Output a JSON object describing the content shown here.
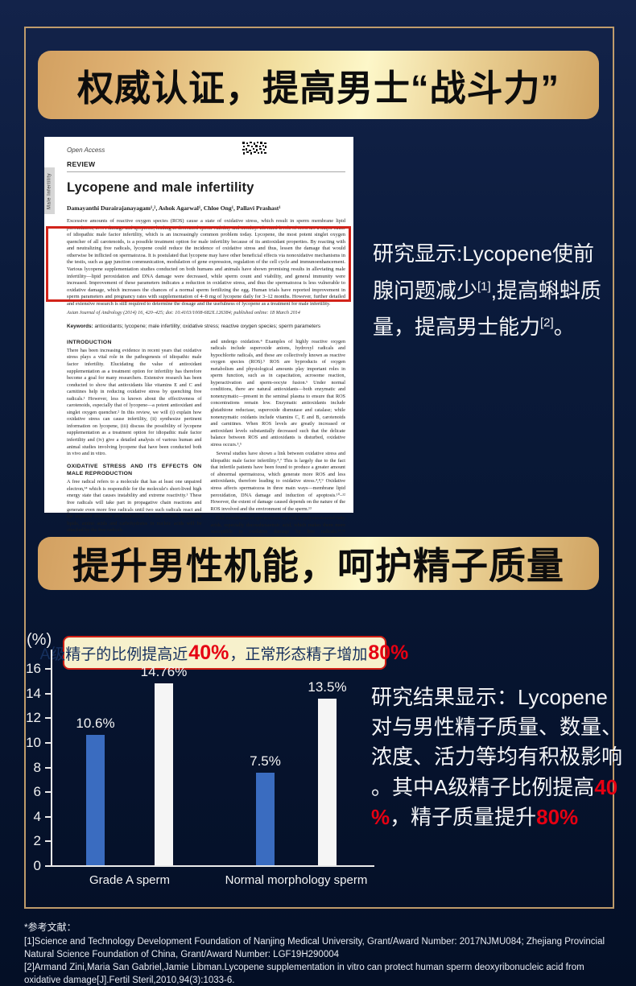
{
  "banners": {
    "banner1": "权威认证，提高男士“战斗力”",
    "banner2": "提升男性机能，呵护精子质量"
  },
  "paper": {
    "open_access": "Open Access",
    "review": "REVIEW",
    "side_tab": "Male Infertility",
    "title": "Lycopene and male infertility",
    "authors": "Damayanthi Durairajanayagam¹,², Ashok Agarwal¹, Chloe Ong¹, Pallavi Prashast¹",
    "abstract": "Excessive amounts of reactive oxygen species (ROS) cause a state of oxidative stress, which result in sperm membrane lipid peroxidation, DNA damage and apoptosis, leading to decreased sperm viability and motility. Elevated levels of ROS are a major cause of idiopathic male factor infertility, which is an increasingly common problem today. Lycopene, the most potent singlet oxygen quencher of all carotenoids, is a possible treatment option for male infertility because of its antioxidant properties. By reacting with and neutralizing free radicals, lycopene could reduce the incidence of oxidative stress and thus, lessen the damage that would otherwise be inflicted on spermatozoa. It is postulated that lycopene may have other beneficial effects via nonoxidative mechanisms in the testis, such as gap junction communication, modulation of gene expression, regulation of the cell cycle and immunoenhancement. Various lycopene supplementation studies conducted on both humans and animals have shown promising results in alleviating male infertility—lipid peroxidation and DNA damage were decreased, while sperm count and viability, and general immunity were increased. Improvement of these parameters indicates a reduction in oxidative stress, and thus the spermatozoa is less vulnerable to oxidative damage, which increases the chances of a normal sperm fertilizing the egg. Human trials have reported improvement in sperm parameters and pregnancy rates with supplementation of 4–8 mg of lycopene daily for 3–12 months. However, further detailed and extensive research is still required to determine the dosage and the usefulness of lycopene as a treatment for male infertility.",
    "journal_line": "Asian Journal of Andrology (2014) 16, 420–425; doi: 10.4103/1008-682X.126384; published online: 18 March 2014",
    "keywords_label": "Keywords:",
    "keywords_text": " antioxidants; lycopene; male infertility; oxidative stress; reactive oxygen species; sperm parameters",
    "col_left": {
      "h1": "INTRODUCTION",
      "p1": "There has been increasing evidence in recent years that oxidative stress plays a vital role in the pathogenesis of idiopathic male factor infertility. Elucidating the value of antioxidant supplementation as a treatment option for infertility has therefore become a goal for many researchers. Extensive research has been conducted to show that antioxidants like vitamins E and C and carnitines help in reducing oxidative stress by quenching free radicals.¹ However, less is known about the effectiveness of carotenoids, especially that of lycopene—a potent antioxidant and singlet oxygen quencher.² In this review, we will (i) explain how oxidative stress can cause infertility, (ii) synthesize pertinent information on lycopene, (iii) discuss the possibility of lycopene supplementation as a treatment option for idiopathic male factor infertility and (iv) give a detailed analysis of various human and animal studies involving lycopene that have been conducted both in vivo and in vitro.",
      "h2": "OXIDATIVE STRESS AND ITS EFFECTS ON MALE REPRODUCTION",
      "p2": "A free radical refers to a molecule that has at least one unpaired electron,¹⁴ which is responsible for the molecule's short-lived high energy state that causes instability and extreme reactivity.¹ These free radicals will take part in propagative chain reactions and generate even more free radicals until two such radicals react and the unpaired electrons are neutralized.¹ In the process, membrane lipids, amino acids and carbohydrates in nucleic acids will be attacked by the free radicals"
    },
    "col_right": {
      "p1": "and undergo oxidation.⁴ Examples of highly reactive oxygen radicals include superoxide anions, hydroxyl radicals and hypochlorite radicals, and these are collectively known as reactive oxygen species (ROS).⁵ ROS are byproducts of oxygen metabolism and physiological amounts play important roles in sperm function, such as in capacitation, acrosome reaction, hyperactivation and sperm-oocyte fusion.⁶ Under normal conditions, there are natural antioxidants—both enzymatic and nonenzymatic—present in the seminal plasma to ensure that ROS concentrations remain low. Enzymatic antioxidants include glutathione reductase, superoxide dismutase and catalase; while nonenzymatic oxidants include vitamins C, E and B, carotenoids and carnitines. When ROS levels are greatly increased or antioxidant levels substantially decreased such that the delicate balance between ROS and antioxidants is disturbed, oxidative stress occurs.³,⁵",
      "p2": "Several studies have shown a link between oxidative stress and idiopathic male factor infertility.⁴,⁷ This is largely due to the fact that infertile patients have been found to produce a greater amount of abnormal spermatozoa, which generate more ROS and less antioxidants, therefore leading to oxidative stress.⁴,⁸,⁹ Oxidative stress affects spermatozoa in three main ways—membrane lipid peroxidation, DNA damage and induction of apoptosis.¹⁰–¹² However, the extent of damage caused depends on the nature of the ROS involved and the environment of the sperm.¹³",
      "p3": "Cell membranes of spermatozoa are rich in polyunsaturated fatty acids, especially docosahexaenoic acid, which makes them more susceptible to oxidative damage by free radicals.¹⁴,¹⁵ Polyunsaturated"
    },
    "footnote1": "¹Center for Reproductive Medicine, Glickman Urological and Kidney Institute, Cleveland Clinic, Cleveland, Ohio, USA; ²Faculty of Medicine, MARA University of Technology, Sungai Buloh, Selangor, Malaysia",
    "footnote2": "Correspondence: Dr. A Agarwal (agarwaa@ccf.org)",
    "footnote3": "Received: 12 September 2013; Revised: 04 November 2013; Accepted: 02 January 2014"
  },
  "research_note": {
    "segments": [
      {
        "t": "研究显示:Lycopene使前腺问题减少"
      },
      {
        "t": "[1]",
        "c": "sup"
      },
      {
        "t": ",提高蝌蚪质量，提高男士能力"
      },
      {
        "t": "[2]",
        "c": "sup"
      },
      {
        "t": "。"
      }
    ]
  },
  "chart_annotation": {
    "segments": [
      {
        "t": "A级精子的比例提高近"
      },
      {
        "t": "40%",
        "c": "red"
      },
      {
        "t": "，正常形态精子增加"
      },
      {
        "t": "80%",
        "c": "red"
      }
    ]
  },
  "chart_note": {
    "segments": [
      {
        "t": "研究结果显示：Lycopene对与男性精子质量、数量、浓度、活力等均有积极影响。其中A级精子比例提高"
      },
      {
        "t": "40%",
        "c": "red"
      },
      {
        "t": "，精子质量提升"
      },
      {
        "t": "80%",
        "c": "red"
      }
    ]
  },
  "chart_data": {
    "type": "bar",
    "title": "",
    "unit_label": "(%)",
    "categories": [
      "Grade A sperm",
      "Normal morphology sperm"
    ],
    "series": [
      {
        "name": "blue",
        "color": "#3a6cc0",
        "values": [
          10.6,
          7.5
        ]
      },
      {
        "name": "white",
        "color": "#f5f5f5",
        "values": [
          14.76,
          13.5
        ]
      }
    ],
    "value_labels": [
      [
        "10.6%",
        "14.76%"
      ],
      [
        "7.5%",
        "13.5%"
      ]
    ],
    "ylim": [
      0,
      16
    ],
    "yticks": [
      0,
      2,
      4,
      6,
      8,
      10,
      12,
      14,
      16
    ],
    "grid": false,
    "legend": "none"
  },
  "references": {
    "heading": "*参考文献：",
    "items": [
      "[1]Science and Technology Development Foundation of Nanjing Medical University, Grant/Award Number: 2017NJMU084; Zhejiang Provincial Natural Science Foundation of China, Grant/Award Number: LGF19H290004",
      "[2]Armand Zini,Maria San Gabriel,Jamie Libman.Lycopene supplementation in vitro can protect human sperm deoxyribonucleic acid from oxidative damage[J].Fertil Steril,2010,94(3):1033-6."
    ]
  },
  "colors": {
    "background_top": "#13234a",
    "background_bottom": "#040f26",
    "gold_frame": "#cea770",
    "banner_gold_light": "#fdf7c9",
    "banner_gold_dark": "#d2a061",
    "bar_blue": "#3a6cc0",
    "bar_white": "#f5f5f5",
    "accent_red": "#e60012",
    "annotation_bg": "#f7f1cc",
    "note_text": "#f5f6f8"
  }
}
